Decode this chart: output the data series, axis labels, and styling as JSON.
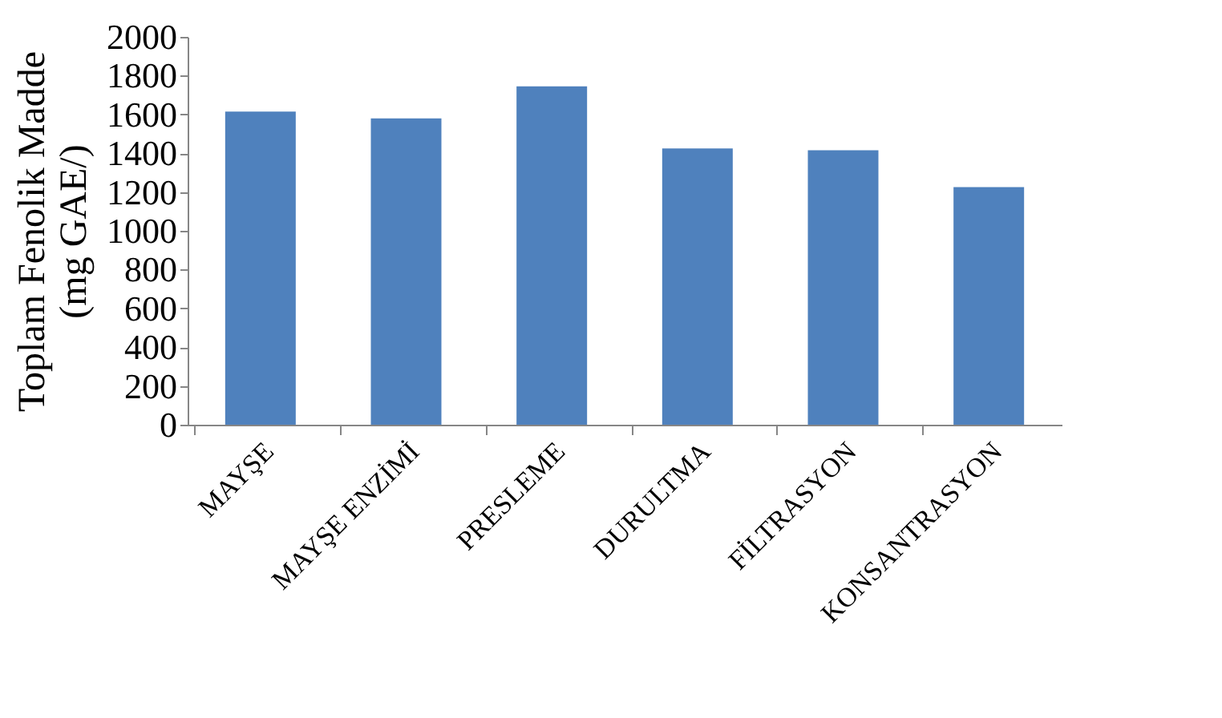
{
  "chart_data": {
    "type": "bar",
    "ylabel": "Toplam Fenolik Madde\n(mg GAE/)",
    "categories": [
      "MAYŞE",
      "MAYŞE ENZİMİ",
      "PRESLEME",
      "DURULTMA",
      "FİLTRASYON",
      "KONSANTRASYON"
    ],
    "values": [
      1615,
      1580,
      1745,
      1425,
      1415,
      1225
    ],
    "color": "#4f81bd",
    "ylim": [
      0,
      2000
    ],
    "yticks": [
      0,
      200,
      400,
      600,
      800,
      1000,
      1200,
      1400,
      1600,
      1800,
      2000
    ],
    "grid": false
  }
}
